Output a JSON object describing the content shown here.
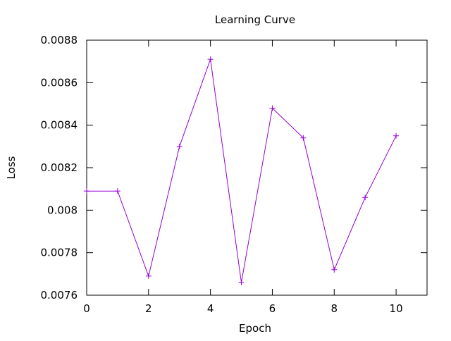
{
  "chart_data": {
    "type": "line",
    "title": "Learning Curve",
    "xlabel": "Epoch",
    "ylabel": "Loss",
    "xlim": [
      0,
      11
    ],
    "ylim": [
      0.0076,
      0.0088
    ],
    "x_ticks": [
      0,
      2,
      4,
      6,
      8,
      10
    ],
    "y_ticks": [
      0.0076,
      0.0078,
      0.008,
      0.0082,
      0.0084,
      0.0086,
      0.0088
    ],
    "x_tick_labels": [
      "0",
      "2",
      "4",
      "6",
      "8",
      "10"
    ],
    "y_tick_labels": [
      "0.0076",
      "0.0078",
      "0.008",
      "0.0082",
      "0.0084",
      "0.0086",
      "0.0088"
    ],
    "grid": false,
    "legend": "none",
    "marker": "plus",
    "series": [
      {
        "color": "#9400d3",
        "x": [
          0,
          1,
          2,
          3,
          4,
          5,
          6,
          7,
          8,
          9,
          10
        ],
        "values": [
          0.00809,
          0.00809,
          0.00769,
          0.0083,
          0.00871,
          0.00766,
          0.00848,
          0.00834,
          0.00772,
          0.00806,
          0.00835
        ]
      }
    ]
  }
}
